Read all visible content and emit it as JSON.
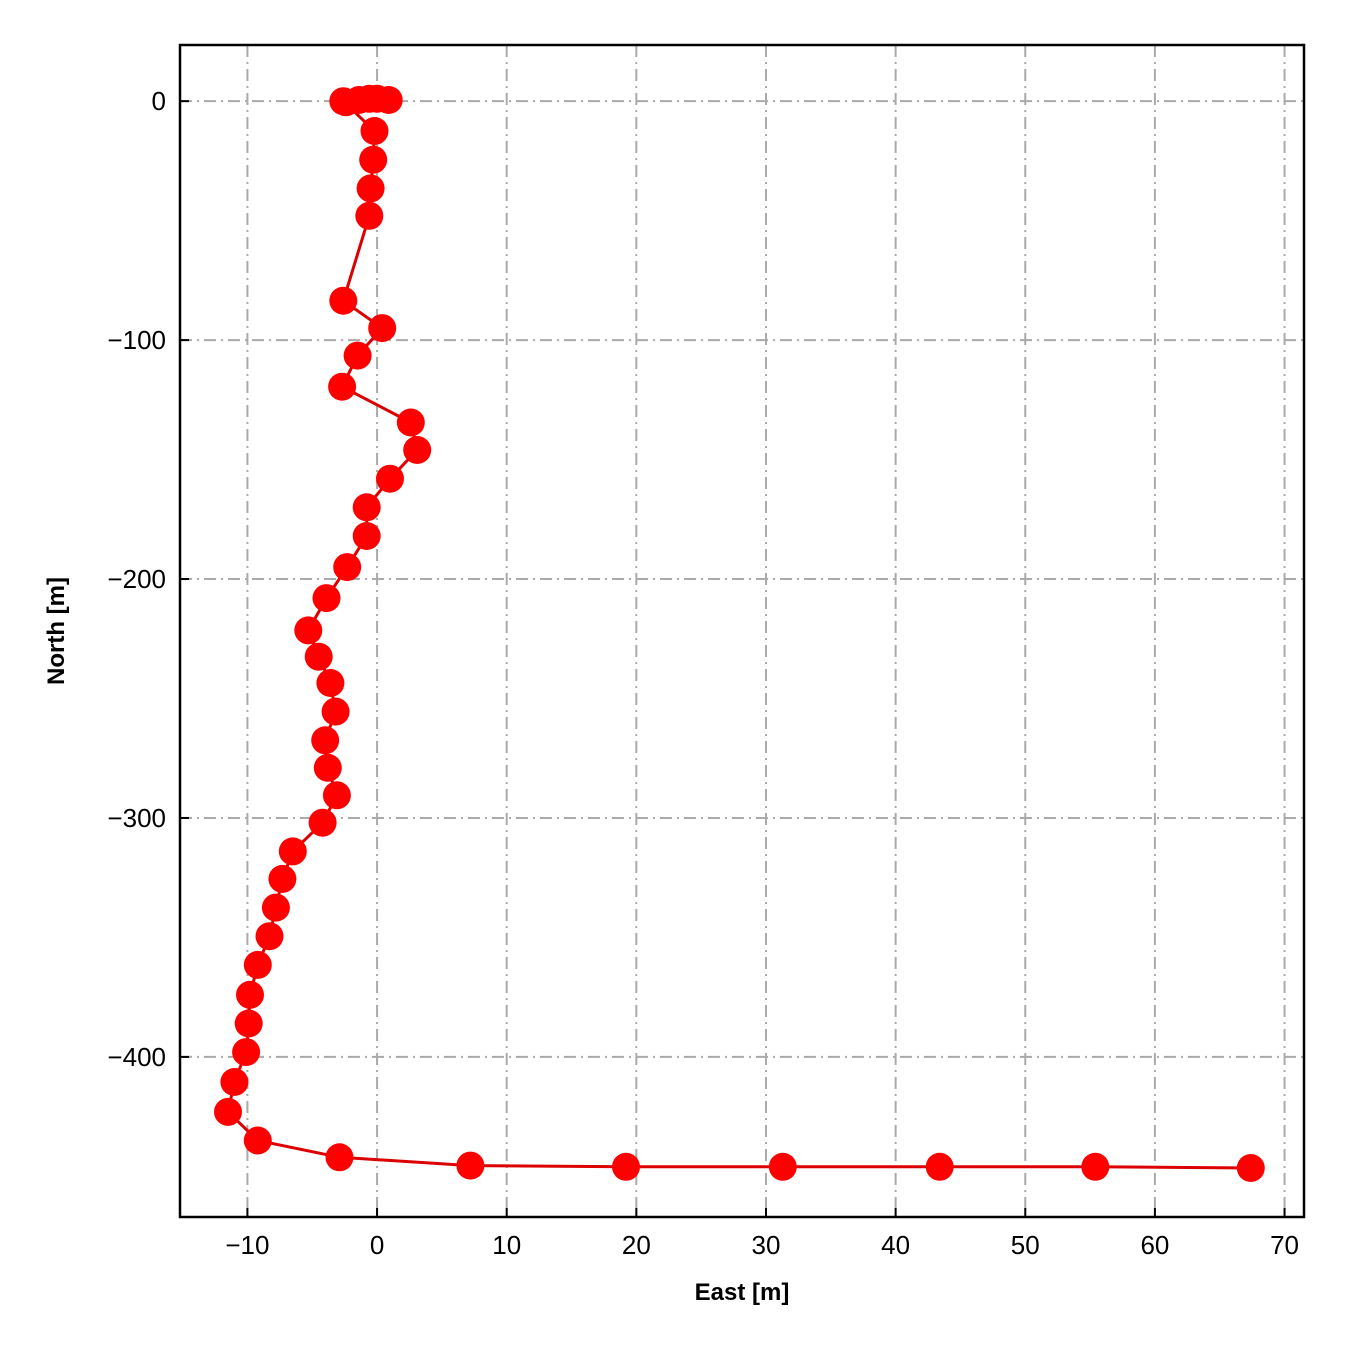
{
  "chart_data": {
    "type": "line",
    "title": "",
    "xlabel": "East [m]",
    "ylabel": "North [m]",
    "xlim": [
      -15.2,
      71.5
    ],
    "ylim": [
      -467,
      23.5
    ],
    "xticks": [
      -10,
      0,
      10,
      20,
      30,
      40,
      50,
      60,
      70
    ],
    "xtick_labels": [
      "−10",
      "0",
      "10",
      "20",
      "30",
      "40",
      "50",
      "60",
      "70"
    ],
    "yticks": [
      0,
      -100,
      -200,
      -300,
      -400
    ],
    "ytick_labels": [
      "0",
      "−100",
      "−200",
      "−300",
      "−400"
    ],
    "grid": true,
    "color": "#ff0000",
    "line_color": "#dd0000",
    "series": [
      {
        "x": [
          0.9,
          0.0,
          -0.6,
          -1.4,
          -2.4,
          -2.6,
          -0.2,
          -0.3,
          -0.5,
          -0.6,
          -2.6,
          0.4,
          -1.5,
          -2.7,
          2.6,
          3.1,
          1.0,
          -0.8,
          -0.8,
          -2.3,
          -3.9,
          -5.3,
          -4.5,
          -3.6,
          -3.2,
          -4.0,
          -3.8,
          -3.1,
          -4.2,
          -6.5,
          -7.3,
          -7.8,
          -8.3,
          -9.2,
          -9.8,
          -9.9,
          -10.1,
          -11.0,
          -11.5,
          -9.2,
          -2.9,
          7.2,
          19.2,
          31.3,
          43.4,
          55.4,
          67.4
        ],
        "y": [
          0.5,
          1.0,
          1.0,
          0.5,
          -0.5,
          0.0,
          -12.5,
          -24.5,
          -36.5,
          -48.0,
          -83.5,
          -95.0,
          -106.5,
          -119.5,
          -134.5,
          -146.0,
          -158.0,
          -170.0,
          -182.0,
          -195.0,
          -208.0,
          -221.5,
          -232.5,
          -243.5,
          -255.5,
          -267.5,
          -279.0,
          -290.5,
          -302.0,
          -314.0,
          -325.5,
          -337.5,
          -349.5,
          -361.5,
          -374.0,
          -386.0,
          -398.0,
          -410.5,
          -423.0,
          -435.0,
          -442.0,
          -445.5,
          -446.0,
          -446.0,
          -446.0,
          -446.0,
          -446.5
        ]
      }
    ]
  }
}
